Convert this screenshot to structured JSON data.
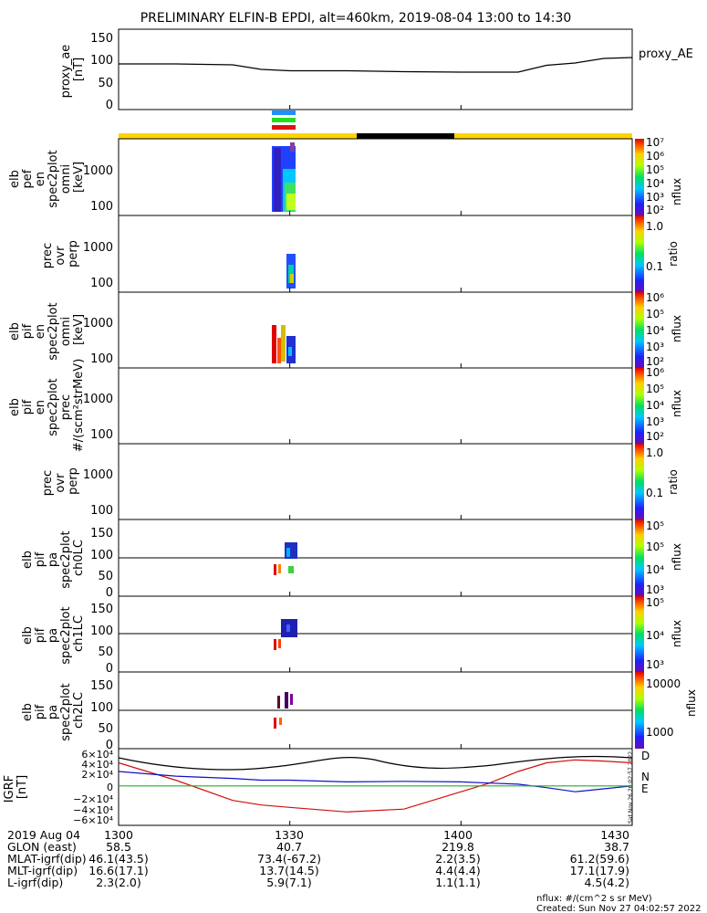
{
  "title": "PRELIMINARY ELFIN-B EPDI, alt=460km, 2019-08-04 13:00 to 14:30",
  "colors": {
    "line_black": "#000000",
    "line_blue": "#1010c8",
    "line_green": "#20b020",
    "line_red": "#d01010",
    "bar_yellow": "#ffd400",
    "bar_black": "#000000",
    "marker_blue": "#1e90ff",
    "marker_green": "#22dd22",
    "marker_red": "#e01010"
  },
  "time_axis": {
    "range": [
      "13:00",
      "14:30"
    ],
    "ticks": [
      "1300",
      "1330",
      "1400",
      "1430"
    ]
  },
  "panels": [
    {
      "id": "proxy_ae",
      "ylabel": [
        "proxy_ae",
        "[nT]"
      ],
      "yticks": [
        "150",
        "100",
        "50",
        "0"
      ],
      "legend": "proxy_AE"
    },
    {
      "id": "elb_pef_en_omni",
      "ylabel": [
        "elb",
        "pef",
        "en",
        "spec2plot",
        "omni",
        "[keV]"
      ],
      "yticks": [
        "1000",
        "100"
      ],
      "colorbar": {
        "ticks": [
          "10⁷",
          "10⁶",
          "10⁵",
          "10⁴",
          "10³",
          "10²"
        ],
        "label": "nflux",
        "scale": "log"
      }
    },
    {
      "id": "prec_ovr_perp_e",
      "ylabel": [
        "prec",
        "ovr",
        "perp"
      ],
      "yticks": [
        "1000",
        "100"
      ],
      "colorbar": {
        "ticks": [
          "1.0",
          "0.1"
        ],
        "label": "ratio",
        "scale": "log"
      }
    },
    {
      "id": "elb_pif_en_omni",
      "ylabel": [
        "elb",
        "pif",
        "en",
        "spec2plot",
        "omni",
        "[keV]"
      ],
      "yticks": [
        "1000",
        "100"
      ],
      "colorbar": {
        "ticks": [
          "10⁶",
          "10⁵",
          "10⁴",
          "10³",
          "10²"
        ],
        "label": "nflux",
        "scale": "log"
      }
    },
    {
      "id": "elb_pif_en_prec",
      "ylabel": [
        "elb",
        "pif",
        "en",
        "spec2plot",
        "prec",
        "#/(scm²strMeV)"
      ],
      "yticks": [
        "1000",
        "100"
      ],
      "colorbar": {
        "ticks": [
          "10⁶",
          "10⁵",
          "10⁴",
          "10³",
          "10²"
        ],
        "label": "nflux",
        "scale": "log"
      }
    },
    {
      "id": "prec_ovr_perp_i",
      "ylabel": [
        "prec",
        "ovr",
        "perp"
      ],
      "yticks": [
        "1000",
        "100"
      ],
      "colorbar": {
        "ticks": [
          "1.0",
          "0.1"
        ],
        "label": "ratio",
        "scale": "log"
      }
    },
    {
      "id": "elb_pif_pa_ch0LC",
      "ylabel": [
        "elb",
        "pif",
        "pa",
        "spec2plot",
        "ch0LC"
      ],
      "yticks": [
        "150",
        "100",
        "50",
        "0"
      ],
      "colorbar": {
        "ticks": [
          "10⁵",
          "10⁵",
          "10⁴",
          "10³"
        ],
        "label": "nflux",
        "scale": "log"
      }
    },
    {
      "id": "elb_pif_pa_ch1LC",
      "ylabel": [
        "elb",
        "pif",
        "pa",
        "spec2plot",
        "ch1LC"
      ],
      "yticks": [
        "150",
        "100",
        "50",
        "0"
      ],
      "colorbar": {
        "ticks": [
          "10⁵",
          "10⁴",
          "10³"
        ],
        "label": "nflux",
        "scale": "log"
      }
    },
    {
      "id": "elb_pif_pa_ch2LC",
      "ylabel": [
        "elb",
        "pif",
        "pa",
        "spec2plot",
        "ch2LC"
      ],
      "yticks": [
        "150",
        "100",
        "50",
        "0"
      ],
      "colorbar": {
        "ticks": [
          "10000",
          "1000"
        ],
        "label": "nflux",
        "scale": "log"
      }
    },
    {
      "id": "igrf",
      "ylabel": [
        "IGRF",
        "[nT]"
      ],
      "yticks": [
        "6×10⁴",
        "4×10⁴",
        "2×10⁴",
        "0",
        "−2×10⁴",
        "−4×10⁴",
        "−6×10⁴"
      ],
      "components": [
        "D",
        "N",
        "E"
      ]
    }
  ],
  "chart_data": {
    "type": "line",
    "title": "PRELIMINARY ELFIN-B EPDI, alt=460km, 2019-08-04 13:00 to 14:30",
    "x": [
      "13:00",
      "13:10",
      "13:20",
      "13:25",
      "13:30",
      "13:40",
      "13:50",
      "14:00",
      "14:05",
      "14:10",
      "14:15",
      "14:20",
      "14:25",
      "14:30"
    ],
    "series": [
      {
        "name": "proxy_AE",
        "values": [
          88,
          88,
          86,
          76,
          73,
          73,
          71,
          70,
          70,
          70,
          85,
          90,
          100,
          102
        ]
      },
      {
        "name": "D",
        "values": [
          45000,
          15000,
          -20000,
          -28000,
          -32000,
          -40000,
          -35000,
          -5000,
          10000,
          30000,
          45000,
          50000,
          48000,
          45000
        ]
      },
      {
        "name": "N",
        "values": [
          30000,
          22000,
          18000,
          15000,
          15000,
          12000,
          13000,
          12000,
          10000,
          8000,
          2000,
          -5000,
          0,
          5000
        ]
      },
      {
        "name": "E",
        "values": [
          5000,
          5000,
          5000,
          5000,
          5000,
          5000,
          5000,
          5000,
          5000,
          5000,
          5000,
          5000,
          5000,
          5000
        ]
      }
    ],
    "ylim": [
      -60000,
      60000
    ],
    "grid": false
  },
  "orbit_table": {
    "rows": [
      {
        "label": "2019 Aug 04",
        "values": [
          "1300",
          "1330",
          "1400",
          "1430"
        ]
      },
      {
        "label": "GLON (east)",
        "values": [
          "58.5",
          "40.7",
          "219.8",
          "38.7"
        ]
      },
      {
        "label": "MLAT-igrf(dip)",
        "values": [
          "46.1(43.5)",
          "73.4(-67.2)",
          "2.2(3.5)",
          "61.2(59.6)"
        ]
      },
      {
        "label": "MLT-igrf(dip)",
        "values": [
          "16.6(17.1)",
          "13.7(14.5)",
          "4.4(4.4)",
          "17.1(17.9)"
        ]
      },
      {
        "label": "L-igrf(dip)",
        "values": [
          "2.3(2.0)",
          "5.9(7.1)",
          "1.1(1.1)",
          "4.5(4.2)"
        ]
      }
    ]
  },
  "footer": {
    "units": "nflux: #/(cm^2 s sr MeV)",
    "created": "Created: Sun Nov 27 04:02:57 2022",
    "side_stamp": "Sat Nov 26 20:02:57 2022"
  }
}
